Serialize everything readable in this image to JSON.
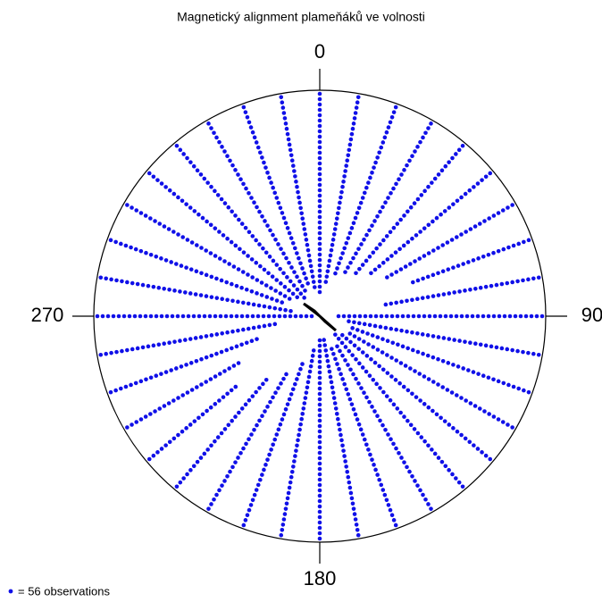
{
  "chart_data": {
    "type": "circular-dot",
    "title": "Magnetický alignment plameňáků ve volnosti",
    "directions": [
      0,
      10,
      20,
      30,
      40,
      50,
      60,
      70,
      80,
      90,
      100,
      110,
      120,
      130,
      140,
      150,
      160,
      170,
      180,
      190,
      200,
      210,
      220,
      230,
      240,
      250,
      260,
      270,
      280,
      290,
      300,
      310,
      320,
      330,
      340,
      350
    ],
    "values": [
      38,
      36,
      34,
      33,
      32,
      30,
      28,
      24,
      30,
      39,
      37,
      36,
      36,
      37,
      38,
      36,
      36,
      38,
      38,
      36,
      33,
      30,
      27,
      22,
      25,
      30,
      34,
      41,
      37,
      35,
      36,
      37,
      38,
      37,
      36,
      37
    ],
    "color": "#1010e8",
    "ticks": [
      0,
      90,
      180,
      270
    ],
    "legend": "= 56 observations"
  }
}
